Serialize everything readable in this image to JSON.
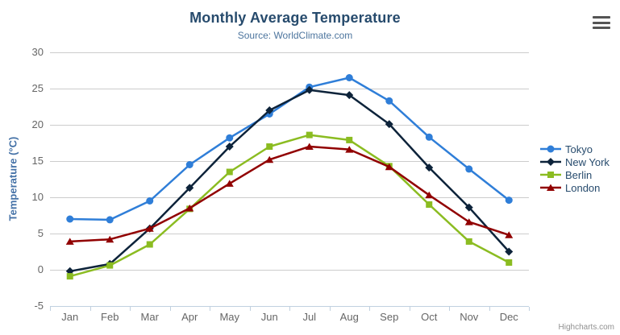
{
  "header": {
    "title": "Monthly Average Temperature",
    "subtitle": "Source: WorldClimate.com"
  },
  "credits": "Highcharts.com",
  "theme": {
    "title_color": "#274b6d",
    "subtitle_color": "#4d759e",
    "axis_label_color": "#666666",
    "axis_title_color": "#4572a7",
    "grid_color": "#cccccc",
    "axis_line_color": "#c0d0e0",
    "legend_text_color": "#274b6d",
    "credits_color": "#909090",
    "menu_icon_color": "#545454",
    "background": "#ffffff"
  },
  "chart_data": {
    "type": "line",
    "title": "Monthly Average Temperature",
    "subtitle": "Source: WorldClimate.com",
    "xlabel": "",
    "ylabel": "Temperature (°C)",
    "categories": [
      "Jan",
      "Feb",
      "Mar",
      "Apr",
      "May",
      "Jun",
      "Jul",
      "Aug",
      "Sep",
      "Oct",
      "Nov",
      "Dec"
    ],
    "ylim": [
      -5,
      30
    ],
    "yticks": [
      -5,
      0,
      5,
      10,
      15,
      20,
      25,
      30
    ],
    "grid": "horizontal",
    "legend_position": "right",
    "series": [
      {
        "name": "Tokyo",
        "color": "#2f7ed8",
        "symbol": "circle",
        "values": [
          7.0,
          6.9,
          9.5,
          14.5,
          18.2,
          21.5,
          25.2,
          26.5,
          23.3,
          18.3,
          13.9,
          9.6
        ]
      },
      {
        "name": "New York",
        "color": "#0d233a",
        "symbol": "diamond",
        "values": [
          -0.2,
          0.8,
          5.7,
          11.3,
          17.0,
          22.0,
          24.8,
          24.1,
          20.1,
          14.1,
          8.6,
          2.5
        ]
      },
      {
        "name": "Berlin",
        "color": "#8bbc21",
        "symbol": "square",
        "values": [
          -0.9,
          0.6,
          3.5,
          8.4,
          13.5,
          17.0,
          18.6,
          17.9,
          14.3,
          9.0,
          3.9,
          1.0
        ]
      },
      {
        "name": "London",
        "color": "#910000",
        "symbol": "triangle",
        "values": [
          3.9,
          4.2,
          5.7,
          8.5,
          11.9,
          15.2,
          17.0,
          16.6,
          14.2,
          10.3,
          6.6,
          4.8
        ]
      }
    ]
  }
}
